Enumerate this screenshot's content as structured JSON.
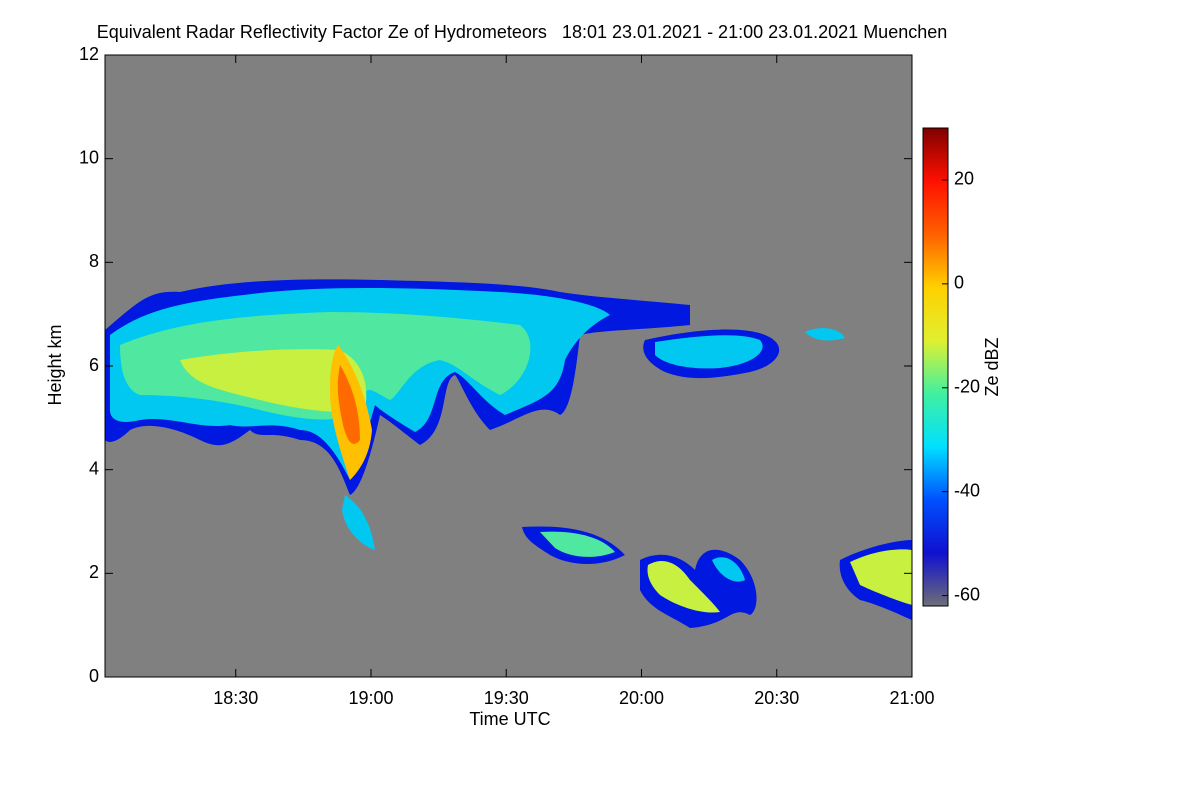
{
  "chart_data": {
    "type": "heatmap",
    "title": "Equivalent Radar Reflectivity Factor Ze of Hydrometeors   18:01 23.01.2021 - 21:00 23.01.2021 Muenchen",
    "x_label": "Time UTC",
    "y_label": "Height km",
    "colorbar_label": "Ze dBZ",
    "xlim": [
      18.0167,
      21.0
    ],
    "xticks": [
      {
        "value": 18.5,
        "label": "18:30"
      },
      {
        "value": 19.0,
        "label": "19:00"
      },
      {
        "value": 19.5,
        "label": "19:30"
      },
      {
        "value": 20.0,
        "label": "20:00"
      },
      {
        "value": 20.5,
        "label": "20:30"
      },
      {
        "value": 21.0,
        "label": "21:00"
      }
    ],
    "ylim": [
      0,
      12
    ],
    "yticks": [
      0,
      2,
      4,
      6,
      8,
      10,
      12
    ],
    "clim": [
      -62,
      30
    ],
    "cticks": [
      -60,
      -40,
      -20,
      0,
      20
    ],
    "background_color": "#808080",
    "colormap": [
      "#6e6e78",
      "#1010d0",
      "#0050ff",
      "#00e0ff",
      "#40f0a0",
      "#e0f030",
      "#ffd000",
      "#ff6000",
      "#ff1000",
      "#800000"
    ]
  }
}
